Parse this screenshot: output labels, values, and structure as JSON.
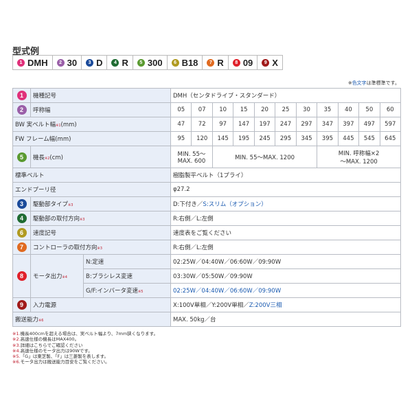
{
  "title": "型式例",
  "model_example": [
    {
      "n": "1",
      "text": "DMH",
      "color": "#e0307a"
    },
    {
      "n": "2",
      "text": "30",
      "color": "#9a5fa8"
    },
    {
      "n": "3",
      "text": "D",
      "color": "#1a4a9a"
    },
    {
      "n": "4",
      "text": "R",
      "color": "#1f6b32"
    },
    {
      "n": "5",
      "text": "300",
      "color": "#5a9a30"
    },
    {
      "n": "6",
      "text": "B18",
      "color": "#b09a20"
    },
    {
      "n": "7",
      "text": "R",
      "color": "#e06a20"
    },
    {
      "n": "8",
      "text": "09",
      "color": "#e0202a"
    },
    {
      "n": "9",
      "text": "X",
      "color": "#a01a1a"
    }
  ],
  "note_top": {
    "prefix": "※",
    "colored": "色文字",
    "suffix": "は準標準です。"
  },
  "spec": {
    "r1": {
      "label": "機種記号",
      "value": "DMH（センタドライブ・スタンダード）"
    },
    "r2": {
      "label": "呼称幅",
      "values": [
        "05",
        "07",
        "10",
        "15",
        "20",
        "25",
        "30",
        "35",
        "40",
        "50",
        "60"
      ]
    },
    "bw": {
      "label": "BW 実ベルト幅",
      "ref": "※1",
      "unit": "(mm)",
      "values": [
        "47",
        "72",
        "97",
        "147",
        "197",
        "247",
        "297",
        "347",
        "397",
        "497",
        "597"
      ]
    },
    "fw": {
      "label": "FW フレーム幅(mm)",
      "values": [
        "95",
        "120",
        "145",
        "195",
        "245",
        "295",
        "345",
        "395",
        "445",
        "545",
        "645"
      ]
    },
    "r5": {
      "label": "機長",
      "ref": "※2",
      "unit": "(cm)",
      "v1a": "MIN. 55～",
      "v1b": "MAX. 600",
      "v2": "MIN. 55～MAX. 1200",
      "v3a": "MIN. 呼称幅×2",
      "v3b": "～MAX. 1200"
    },
    "belt": {
      "label": "標準ベルト",
      "value": "樹脂製平ベルト（1プライ）"
    },
    "pulley": {
      "label": "エンドプーリ径",
      "value": "φ27.2"
    },
    "r3": {
      "label": "駆動部タイプ",
      "ref": "※3",
      "value": "D:下付き／",
      "value_blue": "S:スリム（オプション）"
    },
    "r4": {
      "label": "駆動部の取付方向",
      "ref": "※3",
      "value": "R:右側／L:左側"
    },
    "r6": {
      "label": "速度記号",
      "value": "速度表をご覧ください"
    },
    "r7": {
      "label": "コントローラの取付方向",
      "ref": "※3",
      "value": "R:右側／L:左側"
    },
    "r8": {
      "label": "モータ出力",
      "ref": "※4",
      "n": {
        "label": "N:定速",
        "value": "02:25W／04:40W／06:60W／09:90W"
      },
      "b": {
        "label": "B:ブラシレス変速",
        "value": "03:30W／05:50W／09:90W"
      },
      "g": {
        "label": "G/F:インバータ変速",
        "ref": "※5",
        "value": "02:25W／04:40W／06:60W／09:90W"
      }
    },
    "r9": {
      "label": "入力電源",
      "value": "X:100V単相／Y:200V単相／",
      "value_blue": "Z:200V三相"
    },
    "cap": {
      "label": "搬送能力",
      "ref": "※6",
      "value": "MAX. 50kg／台"
    }
  },
  "footnotes": [
    {
      "ref": "※1.",
      "text": "機長400cmを超える場合は、実ベルト幅より、7mm狭くなります。"
    },
    {
      "ref": "※2.",
      "text": "高速仕様の機長はMAX400。"
    },
    {
      "ref": "※3.",
      "text": "詳細はこちらでご確認ください"
    },
    {
      "ref": "※4.",
      "text": "高速仕様のモータ出力は90Wです。"
    },
    {
      "ref": "※5.",
      "text": "「G」は東芝製、「F」は三菱製を表します。"
    },
    {
      "ref": "※6.",
      "text": "モータ出力は搬送能力目安をご覧ください。"
    }
  ]
}
